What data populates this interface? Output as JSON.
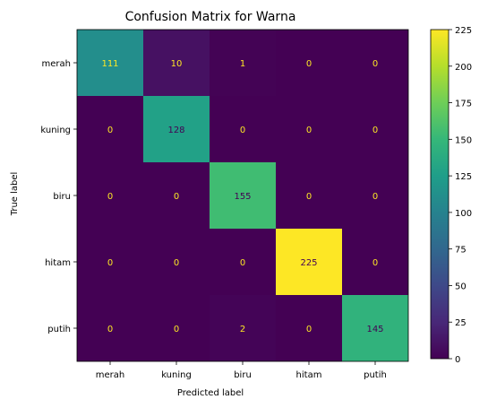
{
  "chart_data": {
    "type": "heatmap",
    "title": "Confusion Matrix for Warna",
    "xlabel": "Predicted label",
    "ylabel": "True label",
    "row_labels": [
      "merah",
      "kuning",
      "biru",
      "hitam",
      "putih"
    ],
    "col_labels": [
      "merah",
      "kuning",
      "biru",
      "hitam",
      "putih"
    ],
    "values": [
      [
        111,
        10,
        1,
        0,
        0
      ],
      [
        0,
        128,
        0,
        0,
        0
      ],
      [
        0,
        0,
        155,
        0,
        0
      ],
      [
        0,
        0,
        0,
        225,
        0
      ],
      [
        0,
        0,
        2,
        0,
        145
      ]
    ],
    "colormap": "viridis",
    "vmin": 0,
    "vmax": 225,
    "colorbar_ticks": [
      0,
      25,
      50,
      75,
      100,
      125,
      150,
      175,
      200,
      225
    ],
    "text_color_dark_cells": "#fde725",
    "text_color_light_cells": "#440154"
  }
}
